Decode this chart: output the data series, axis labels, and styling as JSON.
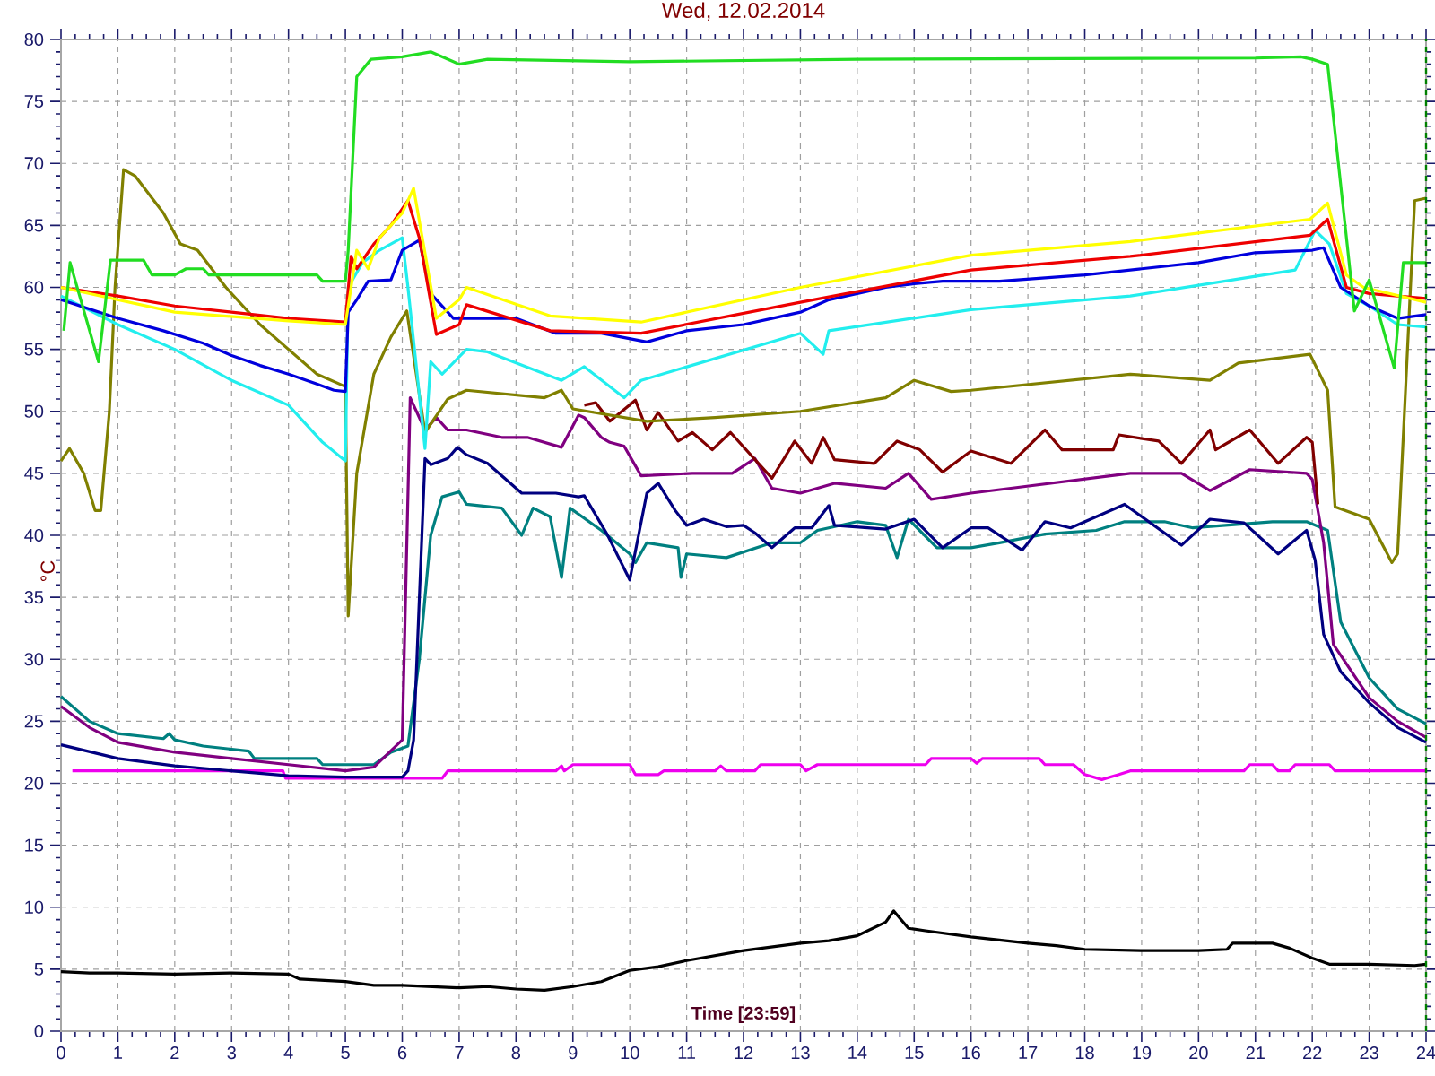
{
  "chart_data": {
    "type": "line",
    "title": "Wed, 12.02.2014",
    "xlabel": "Time [23:59]",
    "ylabel": "°C",
    "xlim": [
      0,
      24
    ],
    "ylim": [
      0,
      80
    ],
    "xticks": [
      0,
      1,
      2,
      3,
      4,
      5,
      6,
      7,
      8,
      9,
      10,
      11,
      12,
      13,
      14,
      15,
      16,
      17,
      18,
      19,
      20,
      21,
      22,
      23,
      24
    ],
    "yticks": [
      0,
      5,
      10,
      15,
      20,
      25,
      30,
      35,
      40,
      45,
      50,
      55,
      60,
      65,
      70,
      75,
      80
    ],
    "grid": true,
    "ref_lines": [
      {
        "axis": "x",
        "value": 24,
        "color": "#008000",
        "line_style": "dashed"
      }
    ],
    "series": [
      {
        "color": "#000000",
        "x": [
          0,
          0.5,
          1,
          2,
          3,
          4,
          4.2,
          5,
          5.5,
          6,
          7,
          7.5,
          8,
          8.5,
          9,
          9.5,
          10,
          10.5,
          11,
          12,
          12.5,
          13,
          13.5,
          14,
          14.5,
          14.64,
          14.9,
          15.2,
          16,
          17,
          17.5,
          18,
          19,
          20,
          20.5,
          20.6,
          21.3,
          21.6,
          22,
          22.3,
          23,
          23.8,
          24
        ],
        "values": [
          4.8,
          4.7,
          4.7,
          4.6,
          4.7,
          4.6,
          4.2,
          4.0,
          3.7,
          3.7,
          3.5,
          3.6,
          3.4,
          3.3,
          3.6,
          4.0,
          4.9,
          5.2,
          5.7,
          6.5,
          6.8,
          7.1,
          7.3,
          7.7,
          8.8,
          9.7,
          8.3,
          8.1,
          7.6,
          7.1,
          6.9,
          6.6,
          6.5,
          6.5,
          6.6,
          7.1,
          7.1,
          6.7,
          5.9,
          5.4,
          5.4,
          5.3,
          5.4
        ]
      },
      {
        "color": "#ee00ee",
        "x": [
          0.2,
          3.9,
          3.95,
          6.7,
          6.8,
          8.7,
          8.8,
          8.85,
          9.0,
          10.0,
          10.1,
          10.5,
          10.6,
          11.5,
          11.6,
          11.7,
          12.2,
          12.3,
          13.0,
          13.1,
          13.3,
          15.2,
          15.3,
          16.0,
          16.1,
          16.2,
          17.2,
          17.3,
          17.8,
          18.0,
          18.3,
          18.6,
          18.8,
          20.8,
          20.9,
          21.3,
          21.4,
          21.6,
          21.7,
          22.3,
          22.4,
          24
        ],
        "values": [
          21,
          21,
          20.4,
          20.4,
          21,
          21,
          21.4,
          21,
          21.5,
          21.5,
          20.7,
          20.7,
          21,
          21,
          21.4,
          21,
          21,
          21.5,
          21.5,
          21,
          21.5,
          21.5,
          22,
          22,
          21.6,
          22,
          22,
          21.5,
          21.5,
          20.7,
          20.3,
          20.7,
          21,
          21,
          21.5,
          21.5,
          21,
          21,
          21.5,
          21.5,
          21,
          21
        ]
      },
      {
        "color": "#008080",
        "x": [
          0,
          0.5,
          1,
          1.8,
          1.9,
          2,
          2.5,
          3.3,
          3.4,
          4.5,
          4.6,
          5.5,
          5.8,
          6.1,
          6.3,
          6.5,
          6.7,
          7.0,
          7.13,
          7.75,
          8.1,
          8.3,
          8.6,
          8.8,
          8.95,
          9.5,
          10.0,
          10.1,
          10.3,
          10.85,
          10.9,
          11.0,
          11.7,
          12.5,
          13.0,
          13.3,
          14.0,
          14.5,
          14.7,
          14.9,
          15.4,
          16.0,
          16.5,
          17.3,
          18.2,
          18.7,
          19.4,
          19.9,
          21.3,
          21.9,
          22.27,
          22.5,
          23,
          23.5,
          24
        ],
        "values": [
          27,
          25,
          24,
          23.6,
          24,
          23.5,
          23,
          22.6,
          22,
          22,
          21.5,
          21.5,
          22.5,
          23,
          30,
          40,
          43.1,
          43.5,
          42.5,
          42.2,
          40,
          42.2,
          41.5,
          36.6,
          42.2,
          40.4,
          38.5,
          37.8,
          39.4,
          39,
          36.6,
          38.5,
          38.2,
          39.4,
          39.4,
          40.4,
          41.1,
          40.8,
          38.2,
          41.3,
          39,
          39,
          39.4,
          40.1,
          40.4,
          41.1,
          41.1,
          40.6,
          41.1,
          41.1,
          40.4,
          33,
          28.5,
          26,
          24.8
        ]
      },
      {
        "color": "#000080",
        "x": [
          0,
          1,
          2,
          3,
          4,
          5,
          6,
          6.1,
          6.2,
          6.4,
          6.5,
          6.8,
          6.97,
          7.13,
          7.5,
          8.1,
          8.7,
          9.1,
          9.2,
          9.6,
          10.0,
          10.3,
          10.5,
          10.8,
          11.0,
          11.3,
          11.7,
          12.0,
          12.2,
          12.5,
          12.9,
          13.2,
          13.5,
          13.6,
          14.5,
          15.0,
          15.5,
          16.0,
          16.3,
          16.9,
          17.3,
          17.75,
          18.7,
          19.7,
          20.2,
          20.8,
          21.4,
          21.9,
          22.05,
          22.2,
          22.5,
          23,
          23.5,
          24
        ],
        "values": [
          23.1,
          22.0,
          21.4,
          21.0,
          20.6,
          20.5,
          20.5,
          21,
          23.5,
          46.2,
          45.7,
          46.2,
          47.1,
          46.5,
          45.8,
          43.4,
          43.4,
          43.1,
          43.2,
          40.1,
          36.4,
          43.4,
          44.2,
          42,
          40.8,
          41.3,
          40.7,
          40.8,
          40.2,
          39.0,
          40.6,
          40.6,
          42.4,
          40.8,
          40.5,
          41.3,
          39,
          40.6,
          40.6,
          38.8,
          41.1,
          40.6,
          42.5,
          39.2,
          41.3,
          41,
          38.5,
          40.4,
          38,
          32,
          29,
          26.5,
          24.5,
          23.3
        ]
      },
      {
        "color": "#800080",
        "x": [
          0,
          0.5,
          1,
          2,
          3,
          4,
          5,
          5.5,
          6.0,
          6.14,
          6.4,
          6.6,
          6.8,
          7.13,
          7.75,
          8.2,
          8.8,
          9.1,
          9.2,
          9.5,
          9.65,
          9.9,
          10.2,
          11.1,
          11.8,
          12.2,
          12.5,
          13.0,
          13.6,
          14.5,
          14.9,
          15.3,
          16.0,
          16.7,
          18.8,
          19.7,
          20.2,
          20.9,
          21.9,
          22.0,
          22.2,
          22.37,
          23,
          23.5,
          24
        ],
        "values": [
          26.2,
          24.5,
          23.3,
          22.5,
          22,
          21.5,
          21.0,
          21.3,
          23.5,
          51.1,
          48.5,
          49.5,
          48.5,
          48.5,
          47.9,
          47.9,
          47.1,
          49.7,
          49.5,
          47.9,
          47.5,
          47.2,
          44.8,
          45.0,
          45,
          46.2,
          43.8,
          43.4,
          44.2,
          43.8,
          45.0,
          42.9,
          43.4,
          43.8,
          45.0,
          45,
          43.6,
          45.3,
          45,
          44.5,
          39.4,
          31.2,
          26.9,
          25,
          23.7
        ]
      },
      {
        "color": "#800000",
        "x": [
          9.2,
          9.4,
          9.65,
          10.1,
          10.3,
          10.5,
          10.85,
          11.1,
          11.45,
          11.77,
          12.5,
          12.9,
          13.2,
          13.4,
          13.6,
          14.3,
          14.7,
          15.1,
          15.5,
          16.0,
          16.7,
          17.3,
          17.6,
          18.5,
          18.6,
          19.3,
          19.7,
          20.2,
          20.3,
          20.9,
          21.4,
          21.9,
          22.0,
          22.1
        ],
        "values": [
          50.5,
          50.7,
          49.2,
          50.9,
          48.5,
          49.9,
          47.6,
          48.3,
          46.9,
          48.3,
          44.6,
          47.6,
          45.8,
          47.9,
          46.1,
          45.8,
          47.6,
          46.9,
          45.1,
          46.8,
          45.8,
          48.5,
          46.9,
          46.9,
          48.1,
          47.6,
          45.8,
          48.5,
          46.9,
          48.5,
          45.8,
          47.9,
          47.5,
          42.5
        ]
      },
      {
        "color": "#808000",
        "x": [
          0,
          0.15,
          0.4,
          0.6,
          0.7,
          0.85,
          0.95,
          1.1,
          1.3,
          1.8,
          2.1,
          2.4,
          2.9,
          3.5,
          4.0,
          4.5,
          5.0,
          5.05,
          5.2,
          5.5,
          5.8,
          6.08,
          6.4,
          6.8,
          7.13,
          8.5,
          8.8,
          9.0,
          10.3,
          11.5,
          13.0,
          14.5,
          15.0,
          15.65,
          16.0,
          18.8,
          20.2,
          20.7,
          21.96,
          22.27,
          22.4,
          23.0,
          23.4,
          23.5,
          23.8,
          24
        ],
        "values": [
          46,
          47,
          45,
          42,
          42,
          50,
          60,
          69.5,
          69,
          66,
          63.5,
          63,
          60,
          57,
          55,
          53,
          52,
          33.5,
          45,
          53,
          56,
          58.1,
          48.3,
          51,
          51.7,
          51.1,
          51.7,
          50.2,
          49.2,
          49.5,
          50.0,
          51.1,
          52.5,
          51.6,
          51.7,
          53,
          52.5,
          53.9,
          54.6,
          51.7,
          42.3,
          41.3,
          37.8,
          38.5,
          67,
          67.2
        ]
      },
      {
        "color": "#22eeee",
        "x": [
          0,
          1,
          2,
          3,
          4,
          4.6,
          5.0,
          5.05,
          5.3,
          5.6,
          6.0,
          6.1,
          6.4,
          6.5,
          6.7,
          7.13,
          7.5,
          8.8,
          9.2,
          9.9,
          10.2,
          13.0,
          13.4,
          13.5,
          16.0,
          18.8,
          21.7,
          22.05,
          22.3,
          22.6,
          23,
          23.5,
          24
        ],
        "values": [
          59.3,
          57,
          55,
          52.5,
          50.5,
          47.5,
          46,
          60,
          62,
          63,
          64,
          60,
          47,
          54,
          53,
          55.0,
          54.8,
          52.5,
          53.6,
          51.1,
          52.5,
          56.3,
          54.6,
          56.5,
          58.2,
          59.3,
          61.4,
          64.6,
          63.5,
          59.5,
          58.5,
          57,
          56.8
        ]
      },
      {
        "color": "#0000dd",
        "x": [
          0,
          1,
          1.8,
          2.5,
          3,
          3.5,
          4,
          4.5,
          4.8,
          5.0,
          5.05,
          5.2,
          5.4,
          5.8,
          6.0,
          6.3,
          6.5,
          6.9,
          7.5,
          8.0,
          8.7,
          9.5,
          10.3,
          11.0,
          12.0,
          12.5,
          13.0,
          13.5,
          14.5,
          15,
          15.5,
          16.5,
          18,
          19,
          20,
          21,
          22,
          22.2,
          22.5,
          23,
          23.5,
          24
        ],
        "values": [
          59,
          57.5,
          56.5,
          55.5,
          54.5,
          53.7,
          53,
          52.2,
          51.7,
          51.6,
          58,
          59,
          60.5,
          60.6,
          63,
          63.8,
          59.5,
          57.5,
          57.5,
          57.5,
          56.3,
          56.3,
          55.6,
          56.5,
          57,
          57.5,
          58,
          59,
          60,
          60.3,
          60.5,
          60.5,
          61,
          61.5,
          62,
          62.8,
          63,
          63.2,
          60,
          58.5,
          57.5,
          57.8
        ]
      },
      {
        "color": "#ee0000",
        "x": [
          0,
          1,
          2,
          3,
          4,
          5.0,
          5.1,
          5.2,
          5.5,
          5.8,
          6.1,
          6.3,
          6.6,
          7.0,
          7.13,
          8.6,
          10.2,
          13.0,
          16.0,
          18.8,
          21.96,
          22.27,
          22.6,
          23,
          24
        ],
        "values": [
          60,
          59.3,
          58.5,
          58,
          57.5,
          57.2,
          62.5,
          61.5,
          63.5,
          65,
          67,
          64,
          56.2,
          57,
          58.6,
          56.5,
          56.3,
          58.8,
          61.4,
          62.5,
          64.2,
          65.5,
          60,
          59.5,
          59.1
        ]
      },
      {
        "color": "#ffff00",
        "x": [
          0,
          2,
          4,
          5.0,
          5.2,
          5.4,
          5.6,
          6.0,
          6.2,
          6.6,
          7.0,
          7.13,
          8.6,
          10.2,
          13.0,
          16.0,
          18.8,
          21.96,
          22.27,
          22.6,
          22.9,
          24
        ],
        "values": [
          60,
          58,
          57.3,
          57,
          63,
          61.5,
          64,
          66,
          68,
          57.5,
          59,
          60,
          57.7,
          57.2,
          60,
          62.6,
          63.7,
          65.5,
          66.8,
          61,
          60,
          58.8
        ]
      },
      {
        "color": "#22dd22",
        "x": [
          0.05,
          0.16,
          0.66,
          0.87,
          1.45,
          1.6,
          2.0,
          2.2,
          2.5,
          2.6,
          4.5,
          4.6,
          5.0,
          5.05,
          5.2,
          5.45,
          6.0,
          6.5,
          7.0,
          7.5,
          10.0,
          14.0,
          21.0,
          21.8,
          22.0,
          22.27,
          22.74,
          23.0,
          23.44,
          23.6,
          24
        ],
        "values": [
          56.5,
          62,
          54,
          62.2,
          62.2,
          61,
          61,
          61.5,
          61.5,
          61,
          61,
          60.5,
          60.5,
          63,
          77,
          78.4,
          78.6,
          79,
          78,
          78.4,
          78.2,
          78.4,
          78.5,
          78.6,
          78.4,
          78.0,
          58.1,
          60.6,
          53.5,
          62,
          62
        ]
      }
    ]
  }
}
